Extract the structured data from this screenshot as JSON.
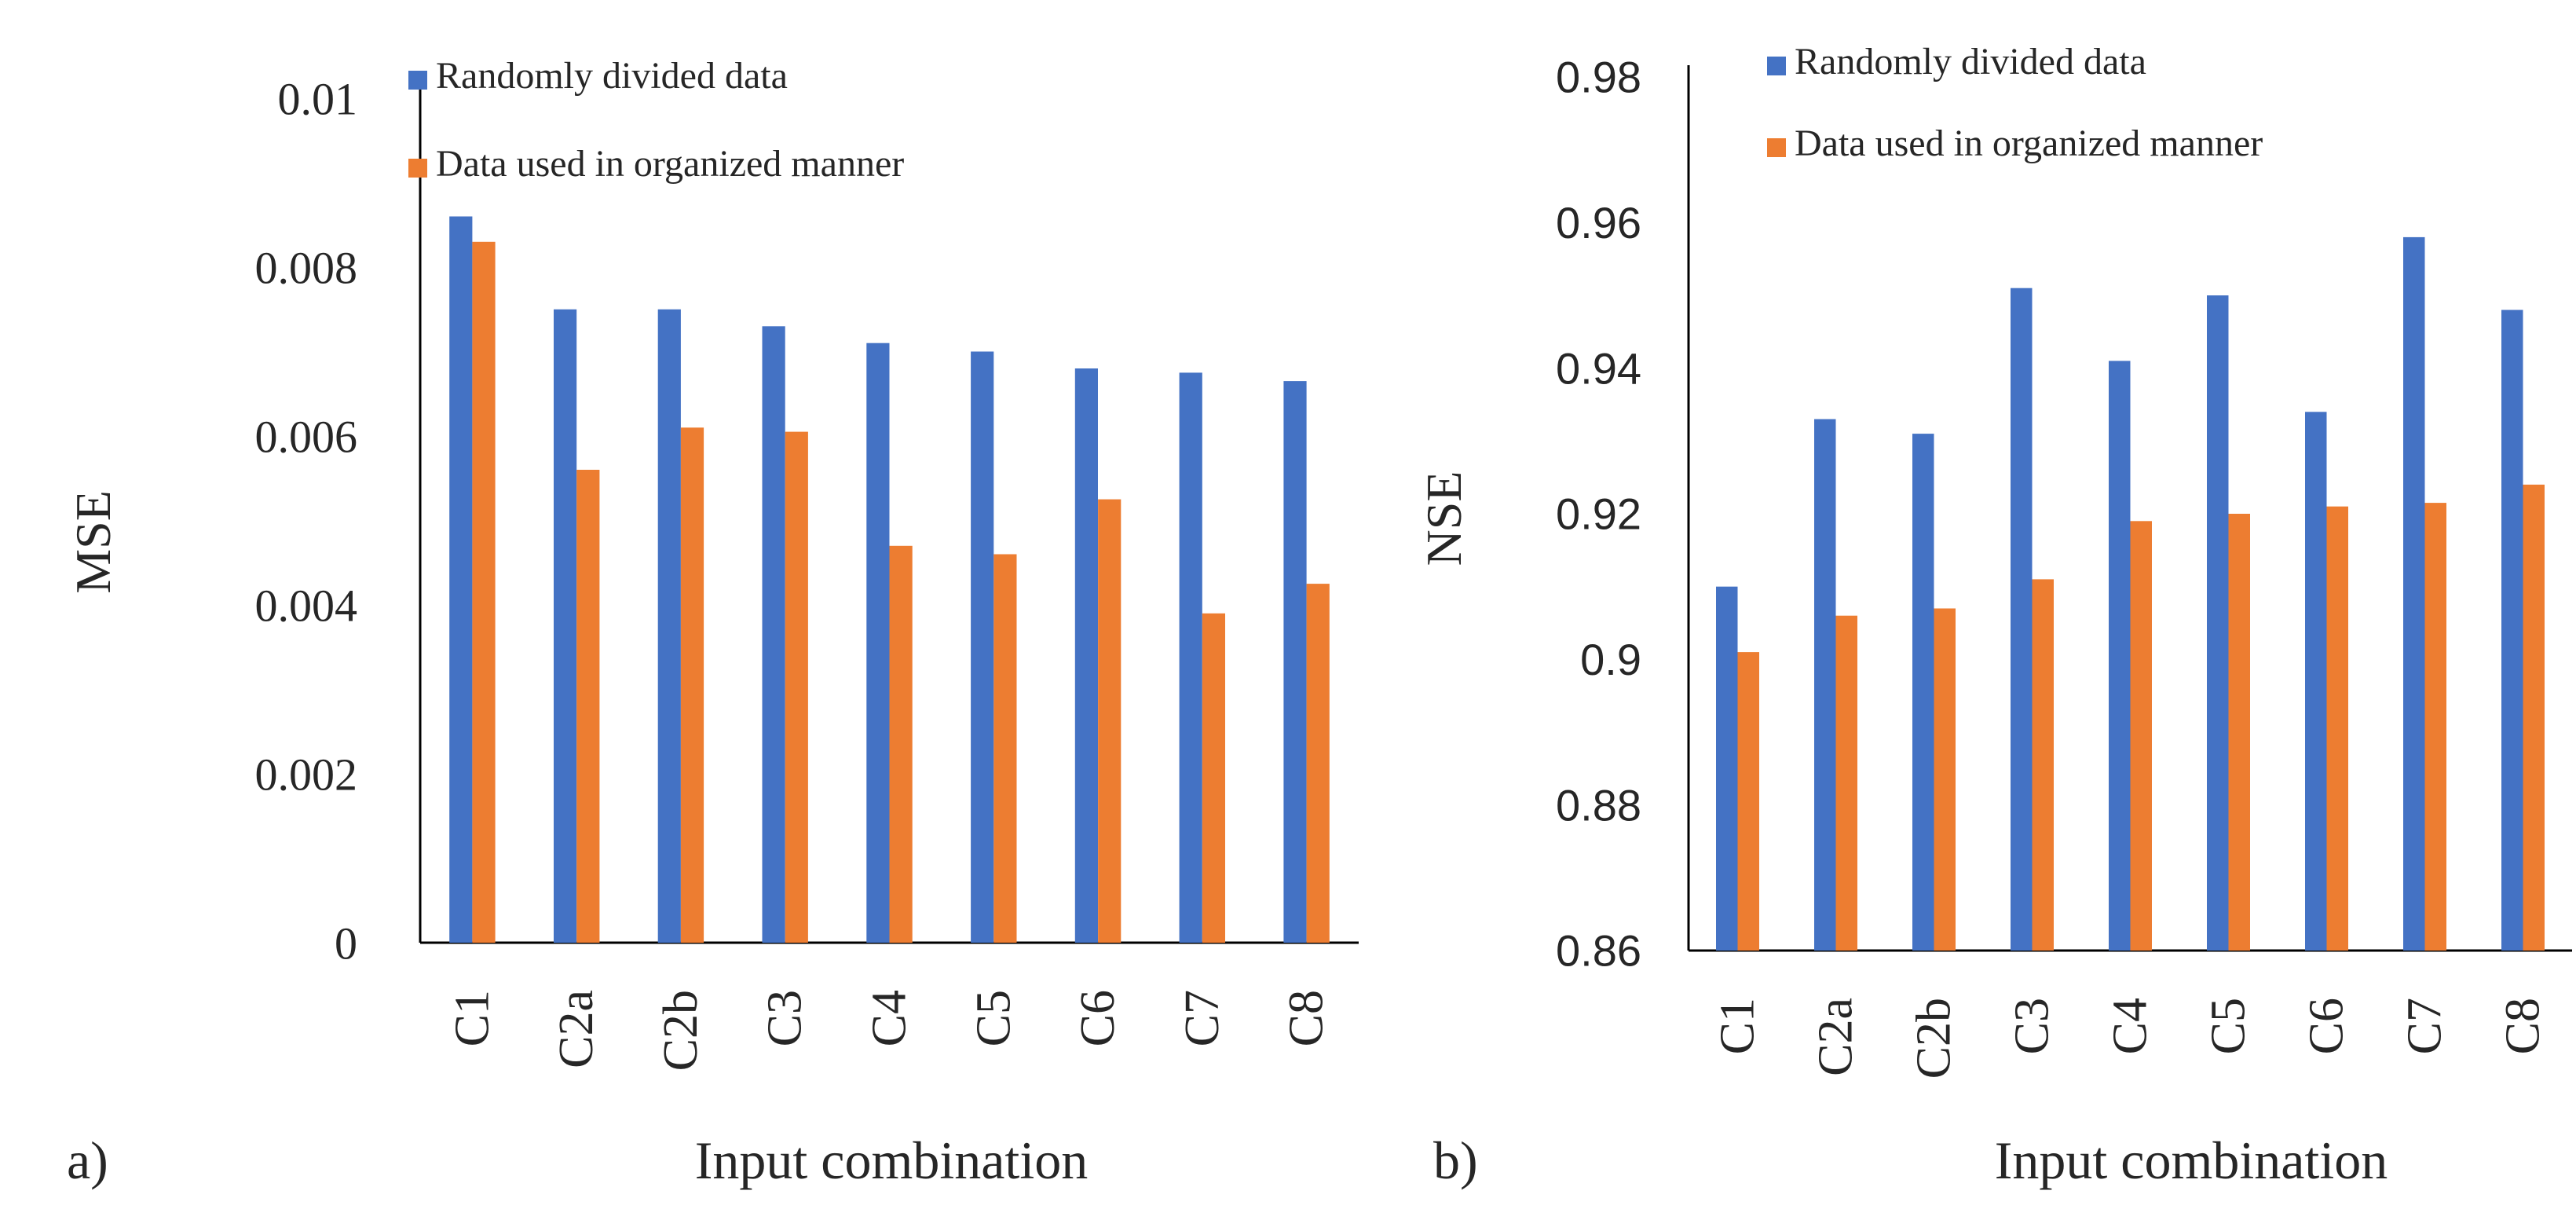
{
  "chart_data": [
    {
      "type": "bar",
      "panel_label": "a)",
      "title": "",
      "xlabel": "Input combination",
      "ylabel": "MSE",
      "ylim": [
        0,
        0.01
      ],
      "grid": false,
      "yticks": [
        "0",
        "0.002",
        "0.004",
        "0.006",
        "0.008",
        "0.01"
      ],
      "categories": [
        "C1",
        "C2a",
        "C2b",
        "C3",
        "C4",
        "C5",
        "C6",
        "C7",
        "C8"
      ],
      "series": [
        {
          "name": "Randomly divided data",
          "color": "#4472C4",
          "values": [
            0.0086,
            0.0075,
            0.0075,
            0.0073,
            0.0071,
            0.007,
            0.0068,
            0.00675,
            0.00665
          ]
        },
        {
          "name": "Data used in organized manner",
          "color": "#ED7D31",
          "values": [
            0.0083,
            0.0056,
            0.0061,
            0.00605,
            0.0047,
            0.0046,
            0.00525,
            0.0039,
            0.00425
          ]
        }
      ]
    },
    {
      "type": "bar",
      "panel_label": "b)",
      "title": "",
      "xlabel": "Input combination",
      "ylabel": "NSE",
      "ylim": [
        0.86,
        0.98
      ],
      "grid": false,
      "yticks": [
        "0.86",
        "0.88",
        "0.9",
        "0.92",
        "0.94",
        "0.96",
        "0.98"
      ],
      "categories": [
        "C1",
        "C2a",
        "C2b",
        "C3",
        "C4",
        "C5",
        "C6",
        "C7",
        "C8"
      ],
      "series": [
        {
          "name": "Randomly divided data",
          "color": "#4472C4",
          "values": [
            0.91,
            0.933,
            0.931,
            0.951,
            0.941,
            0.95,
            0.934,
            0.958,
            0.948
          ]
        },
        {
          "name": "Data used in organized manner",
          "color": "#ED7D31",
          "values": [
            0.901,
            0.906,
            0.907,
            0.911,
            0.919,
            0.92,
            0.921,
            0.9215,
            0.924
          ]
        }
      ]
    }
  ]
}
